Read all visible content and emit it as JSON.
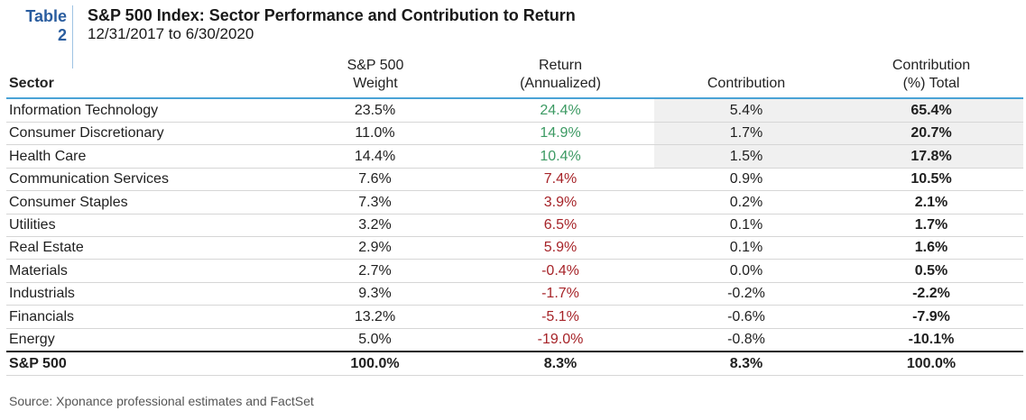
{
  "table_label": {
    "word": "Table",
    "number": "2"
  },
  "title": "S&P 500 Index: Sector Performance and Contribution to Return",
  "subtitle": "12/31/2017 to 6/30/2020",
  "headers": {
    "sector": "Sector",
    "weight_l1": "S&P 500",
    "weight_l2": "Weight",
    "return_l1": "Return",
    "return_l2": "(Annualized)",
    "contribution": "Contribution",
    "total_l1": "Contribution",
    "total_l2": "(%) Total"
  },
  "colors": {
    "positive_return": "#3c9a63",
    "negative_return": "#a62328",
    "header_rule": "#4aa3d6",
    "label": "#2a5d9f",
    "highlight": "#f0f0f0"
  },
  "chart_data": {
    "type": "table",
    "title": "S&P 500 Index: Sector Performance and Contribution to Return",
    "columns": [
      "Sector",
      "S&P 500 Weight",
      "Return (Annualized)",
      "Contribution",
      "Contribution (%) Total"
    ],
    "rows": [
      {
        "sector": "Information Technology",
        "weight": "23.5%",
        "return": "24.4%",
        "contribution": "5.4%",
        "total": "65.4%",
        "return_sign": "pos",
        "highlight": true
      },
      {
        "sector": "Consumer Discretionary",
        "weight": "11.0%",
        "return": "14.9%",
        "contribution": "1.7%",
        "total": "20.7%",
        "return_sign": "pos",
        "highlight": true
      },
      {
        "sector": "Health Care",
        "weight": "14.4%",
        "return": "10.4%",
        "contribution": "1.5%",
        "total": "17.8%",
        "return_sign": "pos",
        "highlight": true
      },
      {
        "sector": "Communication Services",
        "weight": "7.6%",
        "return": "7.4%",
        "contribution": "0.9%",
        "total": "10.5%",
        "return_sign": "neg",
        "highlight": false
      },
      {
        "sector": "Consumer Staples",
        "weight": "7.3%",
        "return": "3.9%",
        "contribution": "0.2%",
        "total": "2.1%",
        "return_sign": "neg",
        "highlight": false
      },
      {
        "sector": "Utilities",
        "weight": "3.2%",
        "return": "6.5%",
        "contribution": "0.1%",
        "total": "1.7%",
        "return_sign": "neg",
        "highlight": false
      },
      {
        "sector": "Real Estate",
        "weight": "2.9%",
        "return": "5.9%",
        "contribution": "0.1%",
        "total": "1.6%",
        "return_sign": "neg",
        "highlight": false
      },
      {
        "sector": "Materials",
        "weight": "2.7%",
        "return": "-0.4%",
        "contribution": "0.0%",
        "total": "0.5%",
        "return_sign": "neg",
        "highlight": false
      },
      {
        "sector": "Industrials",
        "weight": "9.3%",
        "return": "-1.7%",
        "contribution": "-0.2%",
        "total": "-2.2%",
        "return_sign": "neg",
        "highlight": false
      },
      {
        "sector": "Financials",
        "weight": "13.2%",
        "return": "-5.1%",
        "contribution": "-0.6%",
        "total": "-7.9%",
        "return_sign": "neg",
        "highlight": false
      },
      {
        "sector": "Energy",
        "weight": "5.0%",
        "return": "-19.0%",
        "contribution": "-0.8%",
        "total": "-10.1%",
        "return_sign": "neg",
        "highlight": false
      }
    ],
    "total": {
      "sector": "S&P 500",
      "weight": "100.0%",
      "return": "8.3%",
      "contribution": "8.3%",
      "total": "100.0%"
    }
  },
  "source": "Source: Xponance professional estimates and FactSet"
}
